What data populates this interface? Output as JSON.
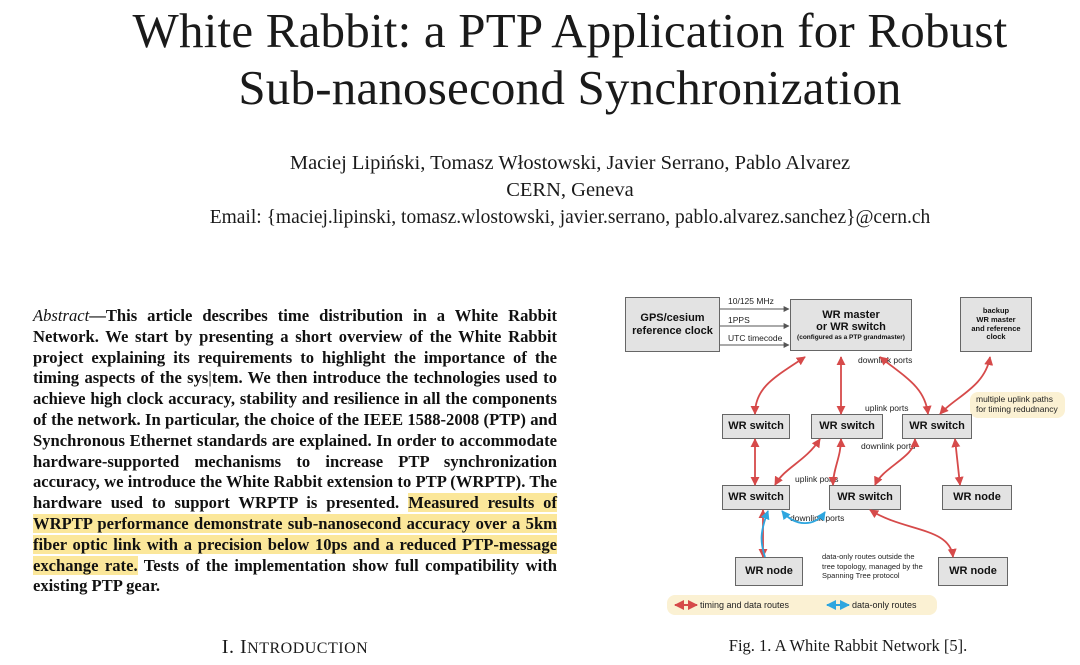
{
  "paper": {
    "title_line1": "White Rabbit: a PTP Application for Robust",
    "title_line2": "Sub-nanosecond Synchronization",
    "authors": "Maciej Lipiński, Tomasz Włostowski, Javier Serrano, Pablo Alvarez",
    "affiliation": "CERN, Geneva",
    "email": "Email: {maciej.lipinski, tomasz.wlostowski, javier.serrano, pablo.alvarez.sanchez}@cern.ch"
  },
  "abstract": {
    "label": "Abstract",
    "dash": "—",
    "text_a": "This article describes time distribution in a White Rabbit Network. We start by presenting a short overview of the White Rabbit project explaining its requirements to highlight the importance of the timing aspects of the sys",
    "text_b": "tem. We then introduce the technologies used to achieve high clock accuracy, stability and resilience in all the components of the network. In particular, the choice of the IEEE 1588-2008 (PTP) and Synchronous Ethernet standards are explained. In order to accommodate hardware-supported mechanisms to increase PTP synchronization accuracy, we introduce the White Rabbit extension to PTP (WRPTP). The hardware used to support WRPTP is presented. ",
    "highlighted": "Measured results of WRPTP performance demonstrate sub-nanosecond accuracy over a 5km fiber optic link with a precision below 10ps and a reduced PTP-message exchange rate.",
    "text_c": " Tests of the implementation show full compatibility with existing PTP gear.",
    "highlight_color": "#fbe79a"
  },
  "section": {
    "number": "I.",
    "first": "I",
    "rest": "NTRODUCTION"
  },
  "figure": {
    "caption": "Fig. 1.   A White Rabbit Network [5].",
    "gps_l1": "GPS/cesium",
    "gps_l2": "reference clock",
    "sig_10mhz": "10/125 MHz",
    "sig_1pps": "1PPS",
    "sig_utc": "UTC timecode",
    "master_l1": "WR master",
    "master_l2": "or WR switch",
    "master_l3": "(configured as a PTP grandmaster)",
    "backup_l1": "backup",
    "backup_l2": "WR master",
    "backup_l3": "and reference clock",
    "downlink_ports_top": "downlink ports",
    "uplink_ports_mid": "uplink ports",
    "multi_uplink": "multiple uplink paths for timing redudnancy",
    "wr_switch": "WR switch",
    "wr_node": "WR node",
    "downlink_ports_mid": "downlink ports",
    "uplink_ports_low": "uplink ports",
    "downlink_ports_low": "downlink ports",
    "data_only_note": "data-only routes outside the tree topology, managed by the Spanning Tree protocol",
    "legend_timing": "timing and data routes",
    "legend_data": "data-only routes",
    "color_timing": "#d64a4a",
    "color_data": "#2ea6df",
    "color_note_bg": "#fbf1d3"
  }
}
